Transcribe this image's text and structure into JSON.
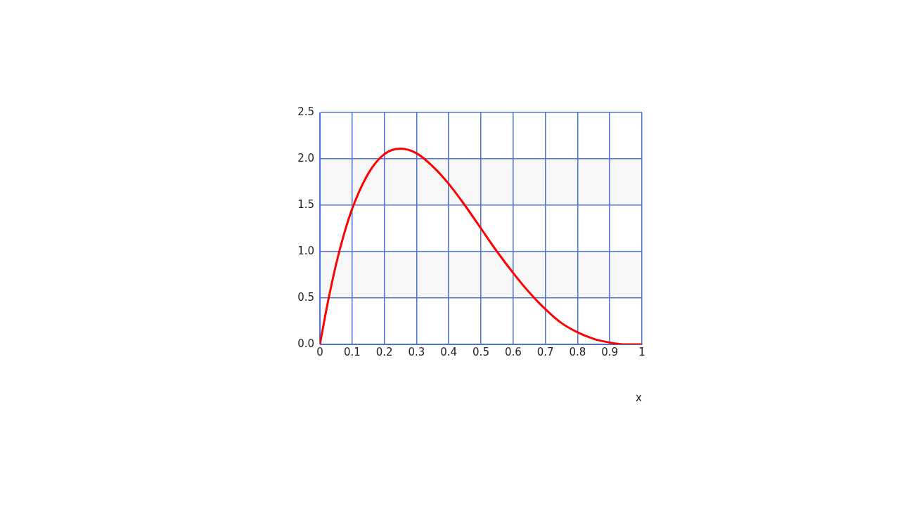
{
  "chart_data": {
    "type": "line",
    "xlabel": "x",
    "x": [
      0,
      0.025,
      0.05,
      0.075,
      0.1,
      0.15,
      0.2,
      0.25,
      0.3,
      0.35,
      0.4,
      0.45,
      0.5,
      0.55,
      0.6,
      0.65,
      0.7,
      0.75,
      0.8,
      0.85,
      0.9,
      0.95,
      1
    ],
    "series": [
      {
        "color": "#ff0000",
        "values": [
          0,
          0.46,
          0.86,
          1.19,
          1.46,
          1.84,
          2.05,
          2.11,
          2.06,
          1.92,
          1.73,
          1.5,
          1.25,
          1.0,
          0.77,
          0.56,
          0.38,
          0.23,
          0.13,
          0.06,
          0.02,
          0,
          0
        ]
      }
    ],
    "xlim": [
      0,
      1
    ],
    "xticks": [
      0,
      0.1,
      0.2,
      0.3,
      0.4,
      0.5,
      0.6,
      0.7,
      0.8,
      0.9,
      1
    ],
    "ylim": [
      0,
      2.5
    ],
    "yticks": [
      {
        "value": 0,
        "label": "0.0"
      },
      {
        "value": 0.5,
        "label": "0.5"
      },
      {
        "value": 1,
        "label": "1.0"
      },
      {
        "value": 1.5,
        "label": "1.5"
      },
      {
        "value": 2,
        "label": "2.0"
      },
      {
        "value": 2.5,
        "label": "2.5"
      }
    ],
    "bands": [
      {
        "axis": "y",
        "from": 0.5,
        "to": 1,
        "color": "#f7f7f7"
      },
      {
        "axis": "y",
        "from": 1.5,
        "to": 2,
        "color": "#f7f7f7"
      }
    ],
    "grid": true,
    "marker": "none",
    "line_style": "solid",
    "legend": false
  }
}
